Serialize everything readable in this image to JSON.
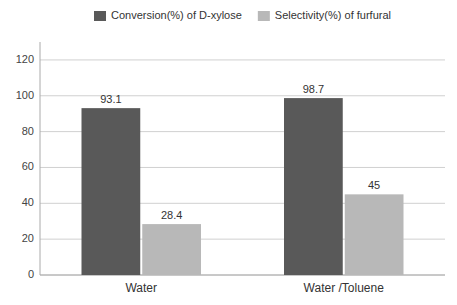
{
  "chart_data": {
    "type": "bar",
    "categories": [
      "Water",
      "Water /Toluene"
    ],
    "series": [
      {
        "name": "Conversion(%) of D-xylose",
        "color": "#595959",
        "values": [
          93.1,
          98.7
        ]
      },
      {
        "name": "Selectivity(%) of furfural",
        "color": "#b8b8b8",
        "values": [
          28.4,
          45
        ]
      }
    ],
    "ylim": [
      0,
      130
    ],
    "yticks": [
      0,
      20,
      40,
      60,
      80,
      100,
      120
    ],
    "grid": true,
    "legend": "top",
    "data_labels": true
  }
}
